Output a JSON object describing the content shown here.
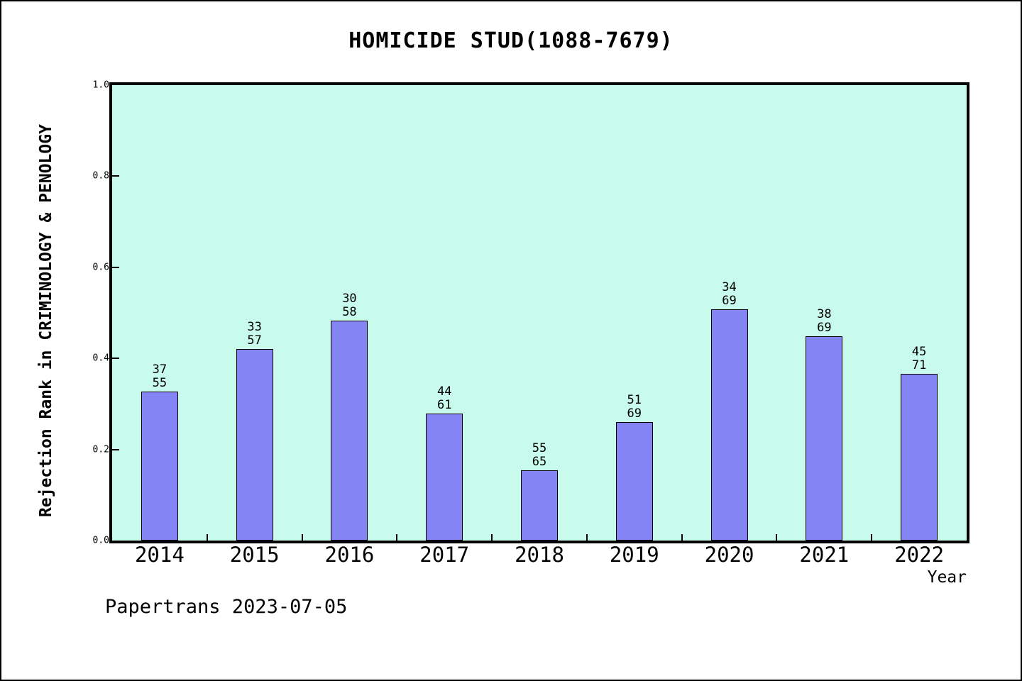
{
  "chart_data": {
    "type": "bar",
    "title": "HOMICIDE STUD(1088-7679)",
    "xlabel": "Year",
    "ylabel": "Rejection Rank in CRIMINOLOGY & PENOLOGY",
    "footer": "Papertrans 2023-07-05",
    "ylim": [
      0.0,
      1.0
    ],
    "yticks": [
      0.0,
      0.2,
      0.4,
      0.6,
      0.8,
      1.0
    ],
    "grid": false,
    "legend": "none",
    "categories": [
      "2014",
      "2015",
      "2016",
      "2017",
      "2018",
      "2019",
      "2020",
      "2021",
      "2022"
    ],
    "bars": [
      {
        "year": "2014",
        "rank": 37,
        "total": 55,
        "value": 0.3273
      },
      {
        "year": "2015",
        "rank": 33,
        "total": 57,
        "value": 0.4211
      },
      {
        "year": "2016",
        "rank": 30,
        "total": 58,
        "value": 0.4828
      },
      {
        "year": "2017",
        "rank": 44,
        "total": 61,
        "value": 0.2787
      },
      {
        "year": "2018",
        "rank": 55,
        "total": 65,
        "value": 0.1538
      },
      {
        "year": "2019",
        "rank": 51,
        "total": 69,
        "value": 0.2609
      },
      {
        "year": "2020",
        "rank": 34,
        "total": 69,
        "value": 0.5072
      },
      {
        "year": "2021",
        "rank": 38,
        "total": 69,
        "value": 0.4493
      },
      {
        "year": "2022",
        "rank": 45,
        "total": 71,
        "value": 0.3662
      }
    ],
    "colors": {
      "bar_fill": "#8484f4",
      "bar_edge": "#000000",
      "plot_bg": "#c9fbec",
      "frame": "#000000",
      "text": "#000000"
    }
  }
}
